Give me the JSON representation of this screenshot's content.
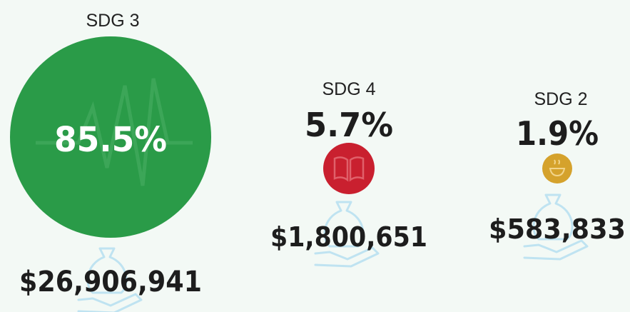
{
  "items": [
    {
      "label": "SDG 3",
      "share": "85.5%",
      "amount": "$26,906,941"
    },
    {
      "label": "SDG 4",
      "share": "5.7%",
      "amount": "$1,800,651"
    },
    {
      "label": "SDG 2",
      "share": "1.9%",
      "amount": "$583,833"
    }
  ]
}
